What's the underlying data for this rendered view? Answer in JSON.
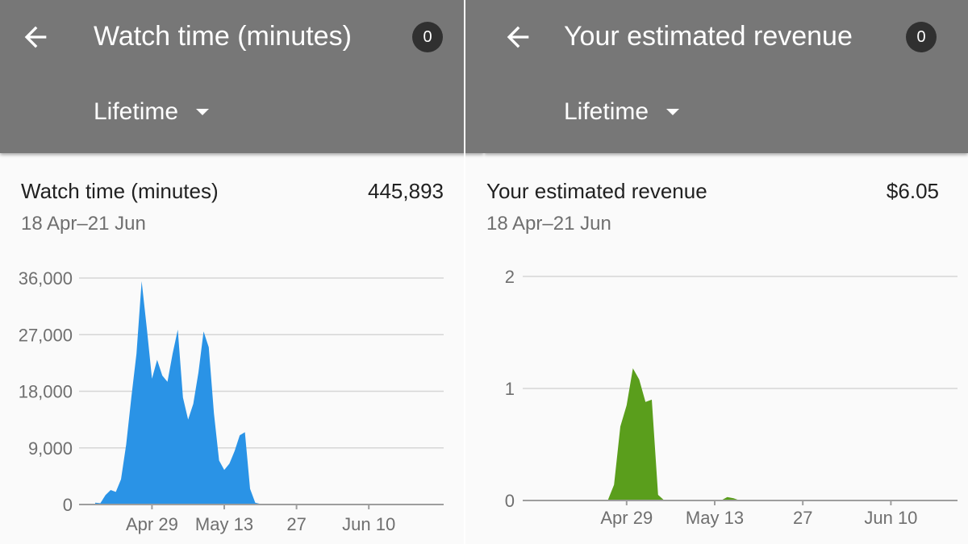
{
  "screens": [
    {
      "header": {
        "title": "Watch time (minutes)",
        "notifications": "0",
        "period": "Lifetime"
      },
      "card": {
        "title": "Watch time (minutes)",
        "total": "445,893",
        "range": "18 Apr–21 Jun"
      },
      "colors": {
        "series": "#2a93e6"
      }
    },
    {
      "header": {
        "title": "Your estimated revenue",
        "notifications": "0",
        "period": "Lifetime"
      },
      "card": {
        "title": "Your estimated revenue",
        "total": "$6.05",
        "range": "18 Apr–21 Jun"
      },
      "colors": {
        "series": "#5a9e1c"
      }
    }
  ],
  "chart_data": [
    {
      "type": "area",
      "title": "Watch time (minutes)",
      "ylim": [
        0,
        36000
      ],
      "yticks": [
        "36,000",
        "27,000",
        "18,000",
        "9,000",
        "0"
      ],
      "ytick_values": [
        36000,
        27000,
        18000,
        9000,
        0
      ],
      "xticks": [
        "Apr 29",
        "May 13",
        "27",
        "Jun 10"
      ],
      "xtick_days": [
        11,
        25,
        39,
        53
      ],
      "grid": true,
      "series": [
        {
          "x": [
            0,
            1,
            2,
            3,
            4,
            5,
            6,
            7,
            8,
            9,
            10,
            11,
            12,
            13,
            14,
            15,
            16,
            17,
            18,
            19,
            20,
            21,
            22,
            23,
            24,
            25,
            26,
            27,
            28,
            29,
            30,
            31,
            32,
            33,
            34,
            35,
            36,
            37,
            38,
            39,
            40,
            41,
            42,
            43,
            44,
            45,
            46,
            47,
            48,
            49,
            50,
            51,
            52,
            53,
            54,
            55,
            56,
            57,
            58,
            59,
            60,
            61,
            62,
            63,
            64
          ],
          "y": [
            300,
            200,
            1500,
            2300,
            2000,
            4000,
            9500,
            17000,
            24000,
            35500,
            28000,
            20000,
            23000,
            20500,
            19500,
            24000,
            27800,
            17000,
            13500,
            16000,
            21000,
            27500,
            25000,
            14500,
            7000,
            5500,
            6500,
            8500,
            11000,
            11500,
            2500,
            300,
            100,
            50,
            0,
            50,
            0,
            0,
            0,
            0,
            0,
            0,
            0,
            0,
            0,
            0,
            0,
            0,
            0,
            0,
            0,
            0,
            0,
            0,
            0,
            0,
            0,
            0,
            0,
            0,
            0,
            0,
            0,
            0,
            0
          ]
        }
      ]
    },
    {
      "type": "area",
      "title": "Your estimated revenue",
      "ylim": [
        0,
        2
      ],
      "yticks": [
        "2",
        "1",
        "0"
      ],
      "ytick_values": [
        2,
        1,
        0
      ],
      "xticks": [
        "Apr 29",
        "May 13",
        "27",
        "Jun 10"
      ],
      "xtick_days": [
        11,
        25,
        39,
        53
      ],
      "grid": true,
      "series": [
        {
          "x": [
            0,
            1,
            2,
            3,
            4,
            5,
            6,
            7,
            8,
            9,
            10,
            11,
            12,
            13,
            14,
            15,
            16,
            17,
            18,
            19,
            20,
            21,
            22,
            23,
            24,
            25,
            26,
            27,
            28,
            29,
            30,
            31,
            32,
            33,
            34,
            35,
            36,
            37,
            38,
            39,
            40,
            41,
            42,
            43,
            44,
            45,
            46,
            47,
            48,
            49,
            50,
            51,
            52,
            53,
            54,
            55,
            56,
            57,
            58,
            59,
            60,
            61,
            62,
            63,
            64
          ],
          "y": [
            0,
            0,
            0,
            0,
            0,
            0,
            0,
            0,
            0,
            0.14,
            0.66,
            0.85,
            1.18,
            1.08,
            0.88,
            0.9,
            0.05,
            0,
            0,
            0,
            0,
            0,
            0,
            0,
            0,
            0,
            0,
            0.03,
            0.02,
            0,
            0,
            0,
            0,
            0,
            0,
            0,
            0,
            0,
            0,
            0,
            0,
            0,
            0,
            0,
            0,
            0,
            0,
            0,
            0,
            0,
            0,
            0,
            0,
            0,
            0,
            0,
            0,
            0,
            0,
            0,
            0,
            0,
            0,
            0,
            0
          ]
        }
      ]
    }
  ]
}
